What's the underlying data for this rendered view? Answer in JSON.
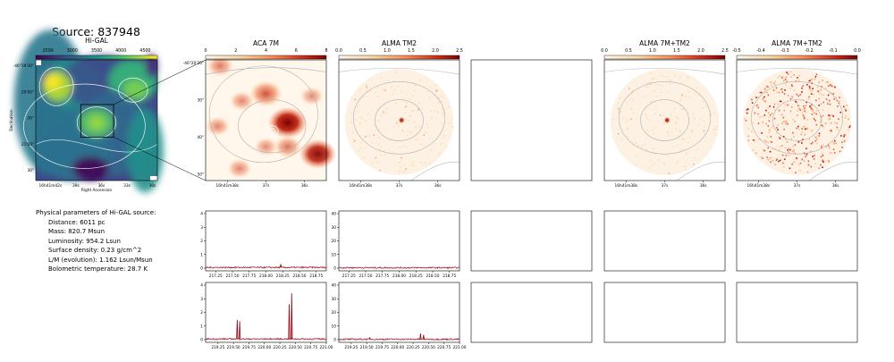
{
  "figure_title": "Source: 837948",
  "params": {
    "heading": "Physical parameters of Hi-GAL source:",
    "lines": [
      "Distance: 6011 pc",
      "Mass: 820.7 Msun",
      "Luminosity: 954.2 Lsun",
      "Surface density: 0.23 g/cm^2",
      "L/M (evolution): 1.162 Lsun/Msun",
      "Bolometric temperature: 28.7 K"
    ]
  },
  "chart_data": [
    {
      "type": "heatmap",
      "title": "Hi-GAL",
      "xlabel": "Right Ascension",
      "ylabel": "Declination",
      "colormap": "viridis",
      "colorbar_ticks": [
        "2500",
        "3000",
        "3500",
        "4000",
        "4500"
      ],
      "x_ticks": [
        "16h41m42s",
        "39s",
        "36s",
        "33s",
        "30s"
      ],
      "y_ticks": [
        "-46°19'30\"",
        "20'00\"",
        "30\"",
        "21'00\"",
        "30\""
      ],
      "zoom_box": true
    },
    {
      "type": "heatmap",
      "title": "ACA 7M",
      "colormap": "OrRd",
      "colorbar_ticks": [
        "0",
        "2",
        "4",
        "6",
        "8"
      ],
      "x_ticks": [
        "16h41m38s",
        "37s",
        "36s"
      ],
      "y_ticks": [
        "-46°20'20\"",
        "30\"",
        "40\"",
        "50\""
      ],
      "blobs": [
        {
          "x": 0.12,
          "y": 0.05,
          "v": 0.45
        },
        {
          "x": 0.5,
          "y": 0.28,
          "v": 0.75
        },
        {
          "x": 0.3,
          "y": 0.34,
          "v": 0.35
        },
        {
          "x": 0.88,
          "y": 0.3,
          "v": 0.3
        },
        {
          "x": 0.68,
          "y": 0.52,
          "v": 1.0
        },
        {
          "x": 0.1,
          "y": 0.55,
          "v": 0.35
        },
        {
          "x": 0.93,
          "y": 0.78,
          "v": 0.9
        },
        {
          "x": 0.68,
          "y": 0.72,
          "v": 0.5
        },
        {
          "x": 0.5,
          "y": 0.72,
          "v": 0.3
        },
        {
          "x": 0.28,
          "y": 0.9,
          "v": 0.35
        }
      ]
    },
    {
      "type": "heatmap",
      "title": "ALMA TM2",
      "colormap": "OrRd",
      "colorbar_ticks": [
        "0.0",
        "0.5",
        "1.0",
        "1.5",
        "2.0",
        "2.5"
      ],
      "x_ticks": [
        "16h41m38s",
        "37s",
        "36s"
      ],
      "mosaic": "circular",
      "noise": "faint",
      "peak": {
        "x": 0.52,
        "y": 0.5
      }
    },
    {
      "type": "heatmap",
      "title": "",
      "empty": true
    },
    {
      "type": "heatmap",
      "title": "ALMA 7M+TM2",
      "colormap": "OrRd",
      "colorbar_ticks": [
        "0.0",
        "0.5",
        "1.0",
        "1.5",
        "2.0",
        "2.5"
      ],
      "x_ticks": [
        "16h41m38s",
        "37s",
        "36s"
      ],
      "mosaic": "circular",
      "noise": "faint",
      "peak": {
        "x": 0.52,
        "y": 0.5
      }
    },
    {
      "type": "heatmap",
      "title": "ALMA 7M+TM2",
      "colormap": "OrRd",
      "colorbar_ticks": [
        "-0.5",
        "-0.4",
        "-0.3",
        "-0.2",
        "-0.1",
        "0.0"
      ],
      "x_ticks": [
        "16h41m38s",
        "37s",
        "36s"
      ],
      "mosaic": "circular",
      "noise": "strong"
    },
    {
      "type": "line",
      "panel": "spectrum-aca-lsb",
      "ylim": [
        0,
        4
      ],
      "y_ticks": [
        "0",
        "1",
        "2",
        "3",
        "4"
      ],
      "xlim": [
        217.1,
        218.9
      ],
      "x_ticks": [
        "217.25",
        "217.50",
        "217.75",
        "218.00",
        "218.25",
        "218.50",
        "218.75"
      ],
      "baseline": 0.05,
      "peaks": [
        {
          "x": 218.22,
          "y": 0.3
        }
      ]
    },
    {
      "type": "line",
      "panel": "spectrum-alma-lsb",
      "ylim": [
        0,
        40
      ],
      "y_ticks": [
        "0",
        "10",
        "20",
        "30",
        "40"
      ],
      "xlim": [
        217.1,
        218.9
      ],
      "x_ticks": [
        "217.25",
        "217.50",
        "217.75",
        "218.00",
        "218.25",
        "218.50",
        "218.75"
      ],
      "baseline": 0.3,
      "peaks": []
    },
    {
      "type": "line",
      "panel": "spectrum-aca-usb",
      "ylim": [
        0,
        4
      ],
      "y_ticks": [
        "0",
        "1",
        "2",
        "3",
        "4"
      ],
      "xlim": [
        219.05,
        221.0
      ],
      "x_ticks": [
        "219.25",
        "219.50",
        "219.75",
        "220.00",
        "220.25",
        "220.50",
        "220.75",
        "221.00"
      ],
      "baseline": 0.05,
      "peaks": [
        {
          "x": 219.56,
          "y": 1.45
        },
        {
          "x": 219.6,
          "y": 1.35
        },
        {
          "x": 220.4,
          "y": 2.6
        },
        {
          "x": 220.44,
          "y": 3.4
        }
      ]
    },
    {
      "type": "line",
      "panel": "spectrum-alma-usb",
      "ylim": [
        0,
        40
      ],
      "y_ticks": [
        "0",
        "10",
        "20",
        "30",
        "40"
      ],
      "xlim": [
        219.05,
        221.0
      ],
      "x_ticks": [
        "219.25",
        "219.50",
        "219.75",
        "220.00",
        "220.25",
        "220.50",
        "220.75",
        "221.00"
      ],
      "baseline": 0.3,
      "peaks": [
        {
          "x": 219.55,
          "y": 1.5
        },
        {
          "x": 220.37,
          "y": 4.5
        },
        {
          "x": 220.42,
          "y": 3.5
        }
      ]
    }
  ]
}
